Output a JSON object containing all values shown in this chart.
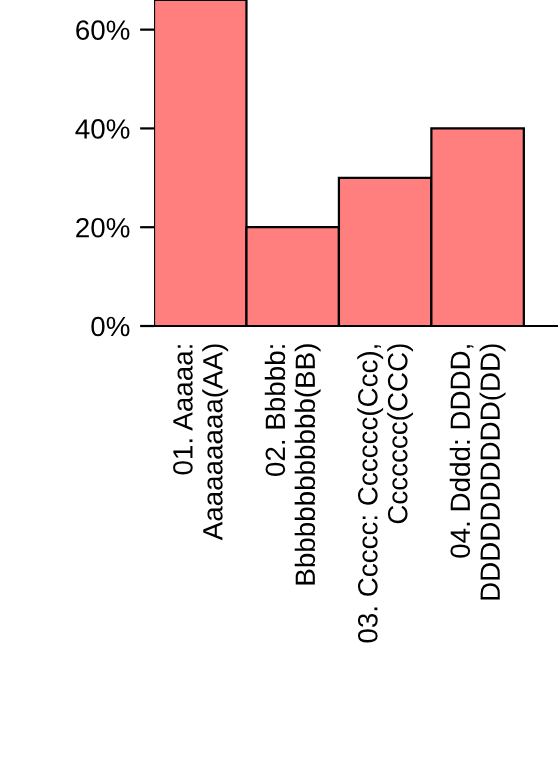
{
  "chart_data": {
    "type": "bar",
    "categories": [
      "01. Aaaaa:\nAaaaaaaaa(AA)",
      "02. Bbbbb:\nBbbbbbbbbbbb(BB)",
      "03. Ccccc: Cccccc(Ccc),\nCcccccc(CCC)",
      "04. Dddd: DDDD,\nDDDDDDDDDD(DD)"
    ],
    "values": [
      66,
      20,
      30,
      40
    ],
    "color": "#ff7f7f",
    "ylim": [
      0,
      66
    ],
    "yticks": [
      {
        "value": 0,
        "label": "0%"
      },
      {
        "value": 20,
        "label": "20%"
      },
      {
        "value": 40,
        "label": "40%"
      },
      {
        "value": 60,
        "label": "60%"
      }
    ],
    "grid": false
  }
}
